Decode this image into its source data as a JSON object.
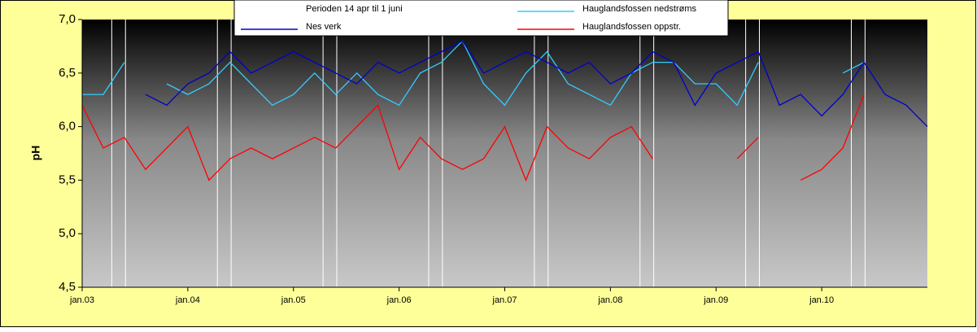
{
  "chart_data": {
    "type": "line",
    "y_label": "pH",
    "xlim": [
      3,
      11
    ],
    "xticks": [
      {
        "value": 3,
        "label": "jan.03"
      },
      {
        "value": 4,
        "label": "jan.04"
      },
      {
        "value": 5,
        "label": "jan.05"
      },
      {
        "value": 6,
        "label": "jan.06"
      },
      {
        "value": 7,
        "label": "jan.07"
      },
      {
        "value": 8,
        "label": "jan.08"
      },
      {
        "value": 9,
        "label": "jan.09"
      },
      {
        "value": 10,
        "label": "jan.10"
      }
    ],
    "ylim": [
      4.5,
      7.0
    ],
    "yticks": [
      {
        "value": 4.5,
        "label": "4,5"
      },
      {
        "value": 5.0,
        "label": "5,0"
      },
      {
        "value": 5.5,
        "label": "5,5"
      },
      {
        "value": 6.0,
        "label": "6,0"
      },
      {
        "value": 6.5,
        "label": "6,5"
      },
      {
        "value": 7.0,
        "label": "7,0"
      }
    ],
    "x": [
      3.0,
      3.2,
      3.4,
      3.6,
      3.8,
      4.0,
      4.2,
      4.4,
      4.6,
      4.8,
      5.0,
      5.2,
      5.4,
      5.6,
      5.8,
      6.0,
      6.2,
      6.4,
      6.6,
      6.8,
      7.0,
      7.2,
      7.4,
      7.6,
      7.8,
      8.0,
      8.2,
      8.4,
      8.6,
      8.8,
      9.0,
      9.2,
      9.4,
      9.6,
      9.8,
      10.0,
      10.2,
      10.4,
      10.6,
      10.8,
      11.0
    ],
    "series": [
      {
        "name": "Perioden 14 apr til 1 juni",
        "color": "#ffffff",
        "kind": "vline",
        "x": [
          3.28,
          3.41,
          4.28,
          4.41,
          5.28,
          5.41,
          6.28,
          6.41,
          7.28,
          7.41,
          8.28,
          8.41,
          9.28,
          9.41,
          10.28,
          10.41
        ]
      },
      {
        "name": "Hauglandsfossen nedstrøms",
        "color": "#33ccff",
        "values": [
          6.3,
          6.3,
          6.6,
          null,
          6.4,
          6.3,
          6.4,
          6.6,
          6.4,
          6.2,
          6.3,
          6.5,
          6.3,
          6.5,
          6.3,
          6.2,
          6.5,
          6.6,
          6.8,
          6.4,
          6.2,
          6.5,
          6.7,
          6.4,
          6.3,
          6.2,
          6.5,
          6.6,
          6.6,
          6.4,
          6.4,
          6.2,
          6.6,
          null,
          null,
          null,
          6.5,
          6.6,
          null,
          null,
          null
        ]
      },
      {
        "name": "Nes verk",
        "color": "#0000cc",
        "values": [
          null,
          null,
          null,
          6.3,
          6.2,
          6.4,
          6.5,
          6.7,
          6.5,
          6.6,
          6.7,
          6.6,
          6.5,
          6.4,
          6.6,
          6.5,
          6.6,
          6.7,
          6.8,
          6.5,
          6.6,
          6.7,
          6.6,
          6.5,
          6.6,
          6.4,
          6.5,
          6.7,
          6.6,
          6.2,
          6.5,
          6.6,
          6.7,
          6.2,
          6.3,
          6.1,
          6.3,
          6.6,
          6.3,
          6.2,
          6.0
        ]
      },
      {
        "name": "Hauglandsfossen oppstr.",
        "color": "#ff0000",
        "values": [
          6.2,
          5.8,
          5.9,
          5.6,
          5.8,
          6.0,
          5.5,
          5.7,
          5.8,
          5.7,
          5.8,
          5.9,
          5.8,
          6.0,
          6.2,
          5.6,
          5.9,
          5.7,
          5.6,
          5.7,
          6.0,
          5.5,
          6.0,
          5.8,
          5.7,
          5.9,
          6.0,
          5.7,
          null,
          null,
          null,
          5.7,
          5.9,
          null,
          5.5,
          5.6,
          5.8,
          6.3,
          null,
          null,
          null
        ]
      }
    ]
  }
}
